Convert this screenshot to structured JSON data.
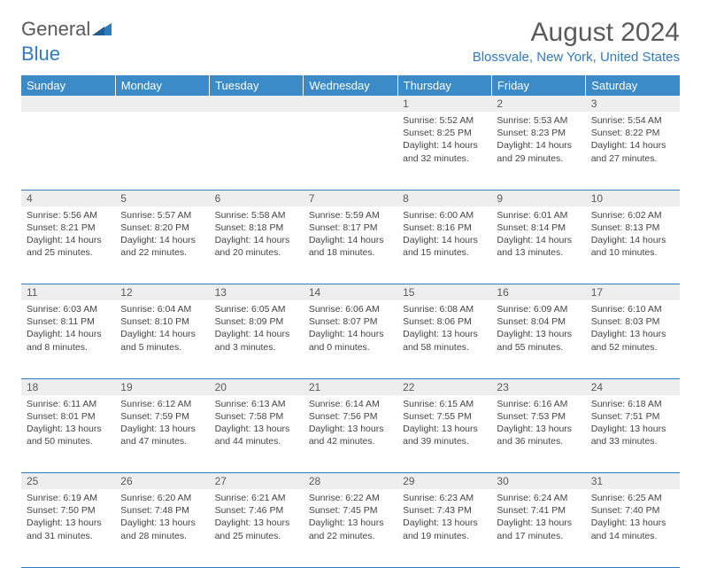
{
  "logo": {
    "word1": "General",
    "word2": "Blue"
  },
  "title": "August 2024",
  "location": "Blossvale, New York, United States",
  "colors": {
    "header_bg": "#3b8bc9",
    "accent": "#2f7bbf",
    "daynum_bg": "#eeeeee",
    "text": "#5a5a5a"
  },
  "dow": [
    "Sunday",
    "Monday",
    "Tuesday",
    "Wednesday",
    "Thursday",
    "Friday",
    "Saturday"
  ],
  "weeks": [
    [
      null,
      null,
      null,
      null,
      {
        "d": "1",
        "sr": "5:52 AM",
        "ss": "8:25 PM",
        "dl": "14 hours and 32 minutes."
      },
      {
        "d": "2",
        "sr": "5:53 AM",
        "ss": "8:23 PM",
        "dl": "14 hours and 29 minutes."
      },
      {
        "d": "3",
        "sr": "5:54 AM",
        "ss": "8:22 PM",
        "dl": "14 hours and 27 minutes."
      }
    ],
    [
      {
        "d": "4",
        "sr": "5:56 AM",
        "ss": "8:21 PM",
        "dl": "14 hours and 25 minutes."
      },
      {
        "d": "5",
        "sr": "5:57 AM",
        "ss": "8:20 PM",
        "dl": "14 hours and 22 minutes."
      },
      {
        "d": "6",
        "sr": "5:58 AM",
        "ss": "8:18 PM",
        "dl": "14 hours and 20 minutes."
      },
      {
        "d": "7",
        "sr": "5:59 AM",
        "ss": "8:17 PM",
        "dl": "14 hours and 18 minutes."
      },
      {
        "d": "8",
        "sr": "6:00 AM",
        "ss": "8:16 PM",
        "dl": "14 hours and 15 minutes."
      },
      {
        "d": "9",
        "sr": "6:01 AM",
        "ss": "8:14 PM",
        "dl": "14 hours and 13 minutes."
      },
      {
        "d": "10",
        "sr": "6:02 AM",
        "ss": "8:13 PM",
        "dl": "14 hours and 10 minutes."
      }
    ],
    [
      {
        "d": "11",
        "sr": "6:03 AM",
        "ss": "8:11 PM",
        "dl": "14 hours and 8 minutes."
      },
      {
        "d": "12",
        "sr": "6:04 AM",
        "ss": "8:10 PM",
        "dl": "14 hours and 5 minutes."
      },
      {
        "d": "13",
        "sr": "6:05 AM",
        "ss": "8:09 PM",
        "dl": "14 hours and 3 minutes."
      },
      {
        "d": "14",
        "sr": "6:06 AM",
        "ss": "8:07 PM",
        "dl": "14 hours and 0 minutes."
      },
      {
        "d": "15",
        "sr": "6:08 AM",
        "ss": "8:06 PM",
        "dl": "13 hours and 58 minutes."
      },
      {
        "d": "16",
        "sr": "6:09 AM",
        "ss": "8:04 PM",
        "dl": "13 hours and 55 minutes."
      },
      {
        "d": "17",
        "sr": "6:10 AM",
        "ss": "8:03 PM",
        "dl": "13 hours and 52 minutes."
      }
    ],
    [
      {
        "d": "18",
        "sr": "6:11 AM",
        "ss": "8:01 PM",
        "dl": "13 hours and 50 minutes."
      },
      {
        "d": "19",
        "sr": "6:12 AM",
        "ss": "7:59 PM",
        "dl": "13 hours and 47 minutes."
      },
      {
        "d": "20",
        "sr": "6:13 AM",
        "ss": "7:58 PM",
        "dl": "13 hours and 44 minutes."
      },
      {
        "d": "21",
        "sr": "6:14 AM",
        "ss": "7:56 PM",
        "dl": "13 hours and 42 minutes."
      },
      {
        "d": "22",
        "sr": "6:15 AM",
        "ss": "7:55 PM",
        "dl": "13 hours and 39 minutes."
      },
      {
        "d": "23",
        "sr": "6:16 AM",
        "ss": "7:53 PM",
        "dl": "13 hours and 36 minutes."
      },
      {
        "d": "24",
        "sr": "6:18 AM",
        "ss": "7:51 PM",
        "dl": "13 hours and 33 minutes."
      }
    ],
    [
      {
        "d": "25",
        "sr": "6:19 AM",
        "ss": "7:50 PM",
        "dl": "13 hours and 31 minutes."
      },
      {
        "d": "26",
        "sr": "6:20 AM",
        "ss": "7:48 PM",
        "dl": "13 hours and 28 minutes."
      },
      {
        "d": "27",
        "sr": "6:21 AM",
        "ss": "7:46 PM",
        "dl": "13 hours and 25 minutes."
      },
      {
        "d": "28",
        "sr": "6:22 AM",
        "ss": "7:45 PM",
        "dl": "13 hours and 22 minutes."
      },
      {
        "d": "29",
        "sr": "6:23 AM",
        "ss": "7:43 PM",
        "dl": "13 hours and 19 minutes."
      },
      {
        "d": "30",
        "sr": "6:24 AM",
        "ss": "7:41 PM",
        "dl": "13 hours and 17 minutes."
      },
      {
        "d": "31",
        "sr": "6:25 AM",
        "ss": "7:40 PM",
        "dl": "13 hours and 14 minutes."
      }
    ]
  ],
  "labels": {
    "sunrise": "Sunrise:",
    "sunset": "Sunset:",
    "daylight": "Daylight:"
  }
}
